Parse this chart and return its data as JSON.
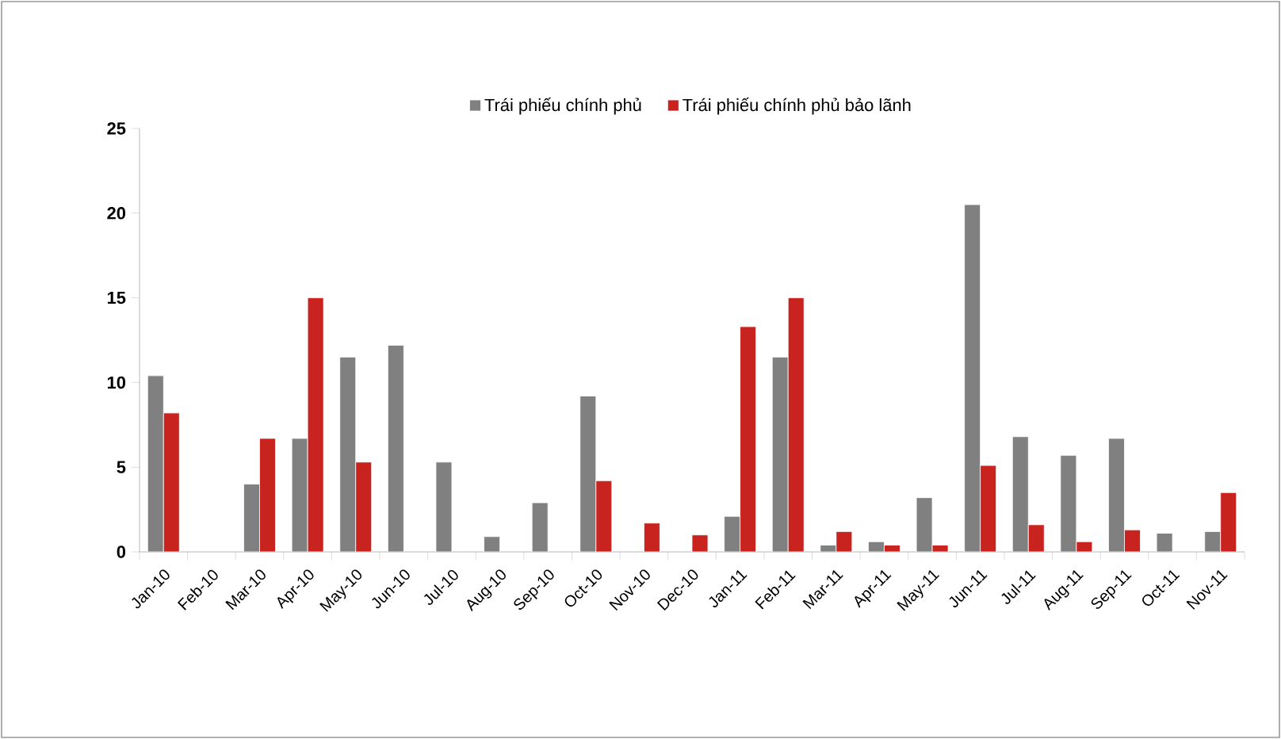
{
  "chart_data": {
    "type": "bar",
    "categories": [
      "Jan-10",
      "Feb-10",
      "Mar-10",
      "Apr-10",
      "May-10",
      "Jun-10",
      "Jul-10",
      "Aug-10",
      "Sep-10",
      "Oct-10",
      "Nov-10",
      "Dec-10",
      "Jan-11",
      "Feb-11",
      "Mar-11",
      "Apr-11",
      "May-11",
      "Jun-11",
      "Jul-11",
      "Aug-11",
      "Sep-11",
      "Oct-11",
      "Nov-11"
    ],
    "series": [
      {
        "name": "Trái phiếu chính phủ",
        "color": "#808080",
        "values": [
          10.4,
          null,
          4.0,
          6.7,
          11.5,
          12.2,
          5.3,
          0.9,
          2.9,
          9.2,
          null,
          null,
          2.1,
          11.5,
          0.4,
          0.6,
          3.2,
          20.5,
          6.8,
          5.7,
          6.7,
          1.1,
          1.2
        ]
      },
      {
        "name": "Trái phiếu chính phủ bảo lãnh",
        "color": "#c8231e",
        "values": [
          8.2,
          null,
          6.7,
          15.0,
          5.3,
          null,
          null,
          null,
          null,
          4.2,
          1.7,
          1.0,
          13.3,
          15.0,
          1.2,
          0.4,
          0.4,
          5.1,
          1.6,
          0.6,
          1.3,
          null,
          3.5
        ]
      }
    ],
    "ylim": [
      0,
      25
    ],
    "yticks": [
      0,
      5,
      10,
      15,
      20,
      25
    ],
    "grid": false,
    "legend": "top"
  }
}
